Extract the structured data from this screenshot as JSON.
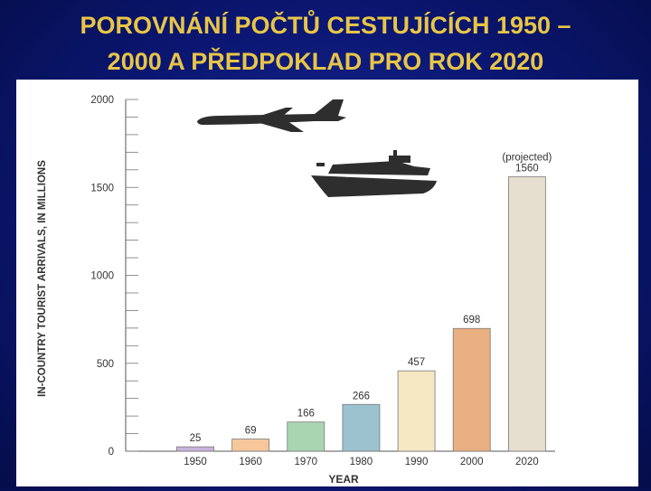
{
  "slide": {
    "title_line1": "POROVNÁNÍ POČTŮ CESTUJÍCÍCH 1950 –",
    "title_line2": "2000 A PŘEDPOKLAD PRO ROK 2020",
    "title_color": "#e8c547",
    "background_color": "#0a1670"
  },
  "chart_data": {
    "type": "bar",
    "categories": [
      "1950",
      "1960",
      "1970",
      "1980",
      "1990",
      "2000",
      "2020"
    ],
    "values": [
      25,
      69,
      166,
      266,
      457,
      698,
      1560
    ],
    "data_labels": [
      "25",
      "69",
      "166",
      "266",
      "457",
      "698",
      "1560"
    ],
    "projected_note": "(projected)",
    "bar_colors": [
      "#c9b4dc",
      "#f6c79b",
      "#a9d6b0",
      "#9cc2cf",
      "#f4e7c2",
      "#eab082",
      "#e6dece"
    ],
    "xlabel": "YEAR",
    "ylabel": "IN-COUNTRY TOURIST ARRIVALS, IN MILLIONS",
    "ylim": [
      0,
      2000
    ],
    "yticks": [
      0,
      500,
      1000,
      1500,
      2000
    ],
    "ytick_labels": [
      "0",
      "500",
      "1000",
      "1500",
      "2000"
    ],
    "minor_tick_step": 100,
    "grid": false,
    "decorations": [
      "airplane-icon",
      "ship-icon"
    ]
  }
}
